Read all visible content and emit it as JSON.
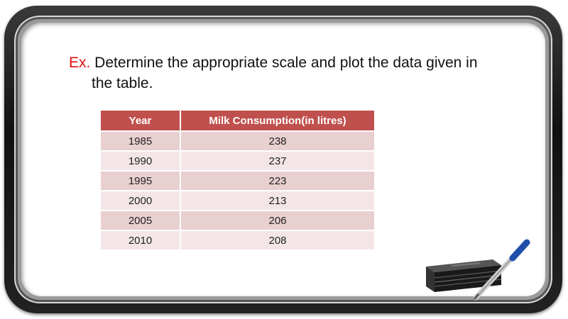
{
  "question": {
    "prefix": "Ex.",
    "line1": " Determine the appropriate scale and plot the data given in",
    "line2": "the table."
  },
  "table": {
    "headers": [
      "Year",
      "Milk Consumption(in litres)"
    ],
    "rows": [
      [
        "1985",
        "238"
      ],
      [
        "1990",
        "237"
      ],
      [
        "1995",
        "223"
      ],
      [
        "2000",
        "213"
      ],
      [
        "2005",
        "206"
      ],
      [
        "2010",
        "208"
      ]
    ]
  },
  "colors": {
    "header_bg": "#c0504d",
    "row_dark": "#e8cfd0",
    "row_light": "#f4e6e7",
    "prefix_red": "#e01010"
  },
  "icons": [
    "eraser-icon",
    "marker-icon"
  ]
}
